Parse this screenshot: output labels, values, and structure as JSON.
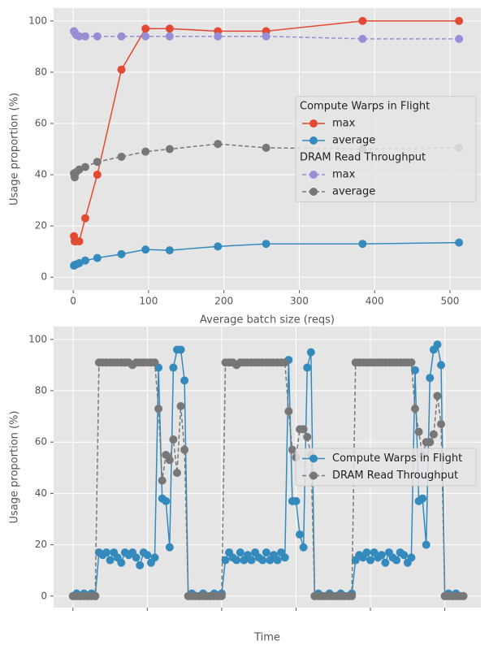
{
  "chart_data": [
    {
      "type": "line",
      "x": [
        1,
        2,
        4,
        8,
        16,
        32,
        64,
        96,
        128,
        192,
        256,
        384,
        512
      ],
      "xlabel": "Average batch size (reqs)",
      "ylabel": "Usage proportion (%)",
      "xlim": [
        -26,
        541
      ],
      "xticks": [
        0,
        100,
        200,
        300,
        400,
        500
      ],
      "ylim": [
        -5,
        105
      ],
      "yticks": [
        0,
        20,
        40,
        60,
        80,
        100
      ],
      "grid": true,
      "legend": "center right",
      "legend_groups": [
        "Compute Warps in Flight",
        "DRAM Read Throughput"
      ],
      "series": [
        {
          "name": "max",
          "group": 0,
          "color": "#E24A33",
          "linestyle": "solid",
          "values": [
            16,
            14,
            14,
            14,
            23,
            40,
            81,
            97,
            97,
            96,
            96,
            100,
            100
          ]
        },
        {
          "name": "average",
          "group": 0,
          "color": "#348ABD",
          "linestyle": "solid",
          "values": [
            4.5,
            4.8,
            5,
            5.5,
            6.5,
            7.5,
            9,
            10.8,
            10.5,
            12,
            13,
            13,
            13.5
          ]
        },
        {
          "name": "max",
          "group": 1,
          "color": "#988ED5",
          "linestyle": "dashed",
          "values": [
            96,
            95.5,
            94.5,
            94,
            94,
            94,
            94,
            94,
            94,
            94,
            94,
            93,
            93
          ]
        },
        {
          "name": "average",
          "group": 1,
          "color": "#777777",
          "linestyle": "dashed",
          "values": [
            40.5,
            39,
            41,
            42,
            43,
            45,
            47,
            49,
            50,
            52,
            50.5,
            50,
            50.5
          ]
        }
      ]
    },
    {
      "type": "line",
      "x": [
        0,
        1,
        2,
        3,
        4,
        5,
        6,
        7,
        8,
        9,
        10,
        11,
        12,
        13,
        14,
        15,
        16,
        17,
        18,
        19,
        20,
        21,
        22,
        23,
        24,
        25,
        26,
        27,
        28,
        29,
        30,
        31,
        32,
        33,
        34,
        35,
        36,
        37,
        38,
        39,
        40,
        41,
        42,
        43,
        44,
        45,
        46,
        47,
        48,
        49,
        50,
        51,
        52,
        53,
        54,
        55,
        56,
        57,
        58,
        59,
        60,
        61,
        62,
        63,
        64,
        65,
        66,
        67,
        68,
        69,
        70,
        71,
        72,
        73,
        74,
        75,
        76,
        77,
        78,
        79,
        80,
        81,
        82,
        83,
        84,
        85,
        86,
        87,
        88,
        89,
        90,
        91,
        92,
        93,
        94,
        95,
        96,
        97,
        98,
        99,
        100,
        101,
        102,
        103,
        104,
        105
      ],
      "xlabel": "Time",
      "ylabel": "Usage proportion (%)",
      "xlim": [
        -5.2,
        109.7
      ],
      "xticks": [
        0,
        20,
        40,
        60,
        80,
        100
      ],
      "xtick_labels": false,
      "ylim": [
        -4.5,
        105
      ],
      "yticks": [
        0,
        20,
        40,
        60,
        80,
        100
      ],
      "grid": true,
      "legend": "center right",
      "series": [
        {
          "name": "Compute Warps in Flight",
          "color": "#348ABD",
          "linestyle": "solid",
          "values": [
            0,
            1,
            0,
            1,
            0,
            1,
            0,
            17,
            16,
            17,
            14,
            17,
            15,
            13,
            17,
            16,
            17,
            15,
            12,
            17,
            16,
            13,
            15,
            89,
            38,
            37,
            19,
            89,
            96,
            96,
            84,
            0,
            1,
            0,
            0,
            1,
            0,
            0,
            1,
            0,
            1,
            14,
            17,
            15,
            14,
            17,
            14,
            16,
            14,
            17,
            15,
            14,
            17,
            14,
            16,
            14,
            17,
            15,
            92,
            37,
            37,
            24,
            19,
            89,
            95,
            0,
            1,
            0,
            0,
            1,
            0,
            0,
            1,
            0,
            0,
            1,
            14,
            16,
            15,
            17,
            14,
            17,
            15,
            16,
            13,
            17,
            15,
            14,
            17,
            16,
            13,
            15,
            88,
            37,
            38,
            20,
            85,
            96,
            98,
            90,
            0,
            1,
            0,
            1,
            0,
            0
          ]
        },
        {
          "name": "DRAM Read Throughput",
          "color": "#777777",
          "linestyle": "dashed",
          "values": [
            0,
            0,
            0,
            0,
            0,
            0,
            0,
            91,
            91,
            91,
            91,
            91,
            91,
            91,
            91,
            91,
            90,
            91,
            91,
            91,
            91,
            91,
            91,
            73,
            45,
            55,
            53,
            61,
            48,
            74,
            57,
            0,
            0,
            0,
            0,
            0,
            0,
            0,
            0,
            0,
            0,
            91,
            91,
            91,
            90,
            91,
            91,
            91,
            91,
            91,
            91,
            91,
            91,
            91,
            91,
            91,
            91,
            91,
            72,
            57,
            54,
            65,
            65,
            62,
            55,
            0,
            0,
            0,
            0,
            0,
            0,
            0,
            0,
            0,
            0,
            0,
            91,
            91,
            91,
            91,
            91,
            91,
            91,
            91,
            91,
            91,
            91,
            91,
            91,
            91,
            91,
            91,
            73,
            64,
            55,
            60,
            60,
            63,
            78,
            67,
            0,
            0,
            0,
            0,
            0,
            0
          ]
        }
      ]
    }
  ]
}
